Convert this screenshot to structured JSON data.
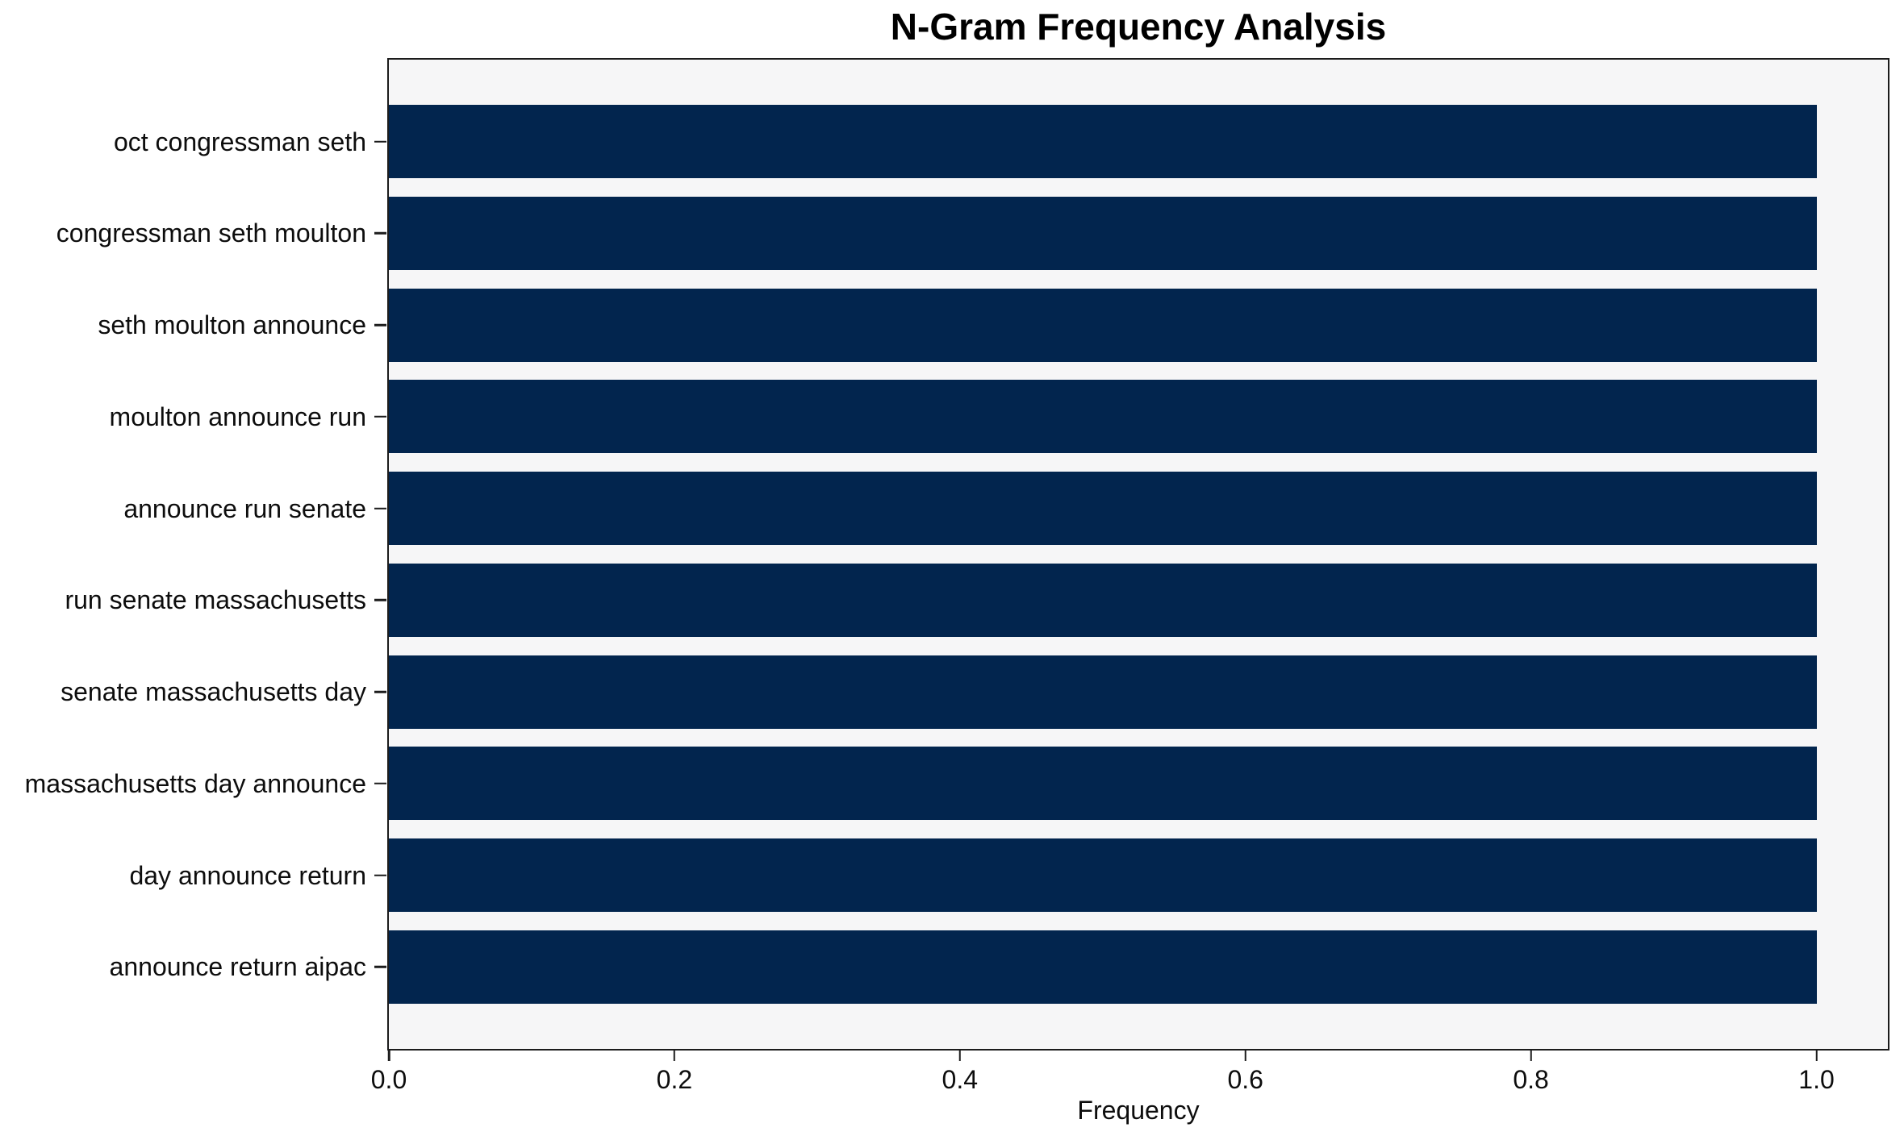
{
  "chart_data": {
    "type": "bar",
    "orientation": "horizontal",
    "title": "N-Gram Frequency Analysis",
    "xlabel": "Frequency",
    "ylabel": "",
    "categories": [
      "oct congressman seth",
      "congressman seth moulton",
      "seth moulton announce",
      "moulton announce run",
      "announce run senate",
      "run senate massachusetts",
      "senate massachusetts day",
      "massachusetts day announce",
      "day announce return",
      "announce return aipac"
    ],
    "values": [
      1.0,
      1.0,
      1.0,
      1.0,
      1.0,
      1.0,
      1.0,
      1.0,
      1.0,
      1.0
    ],
    "x_ticks": [
      0.0,
      0.2,
      0.4,
      0.6,
      0.8,
      1.0
    ],
    "x_tick_labels": [
      "0.0",
      "0.2",
      "0.4",
      "0.6",
      "0.8",
      "1.0"
    ],
    "xlim": [
      0,
      1.05
    ],
    "grid": false,
    "legend": null,
    "bar_color": "#02254e",
    "plot_bg": "#f6f6f7",
    "spine_color": "#1c1c1c",
    "figure_bg": "#ffffff"
  }
}
